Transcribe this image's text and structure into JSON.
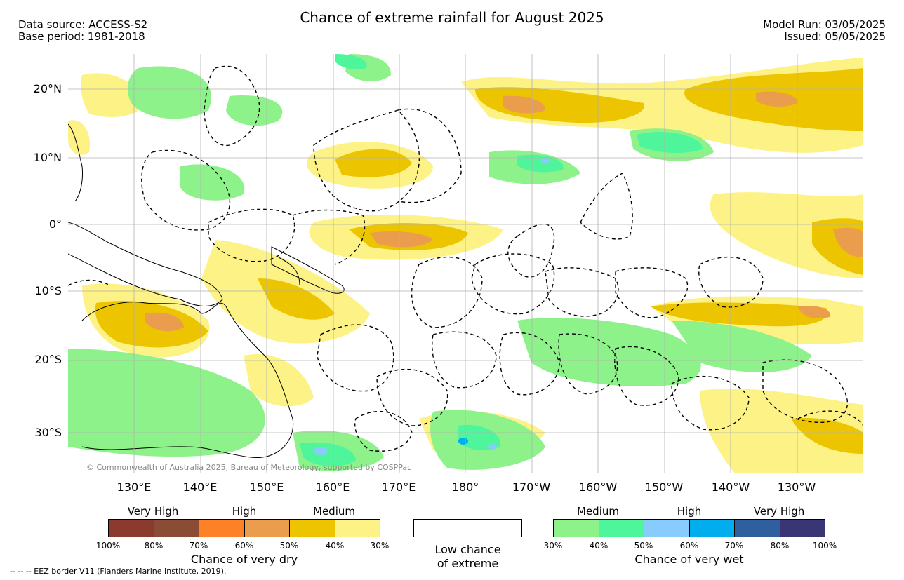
{
  "title": "Chance of extreme rainfall for August 2025",
  "header_left": {
    "source": "Data source: ACCESS-S2",
    "base": "Base period: 1981-2018"
  },
  "header_right": {
    "run": "Model Run: 03/05/2025",
    "issued": "Issued: 05/05/2025"
  },
  "copyright": "© Commonwealth of Australia 2025, Bureau of Meteorology, supported by COSPPac",
  "lat_labels": [
    "20°N",
    "10°N",
    "0°",
    "10°S",
    "20°S",
    "30°S"
  ],
  "lon_labels": [
    "130°E",
    "140°E",
    "150°E",
    "160°E",
    "170°E",
    "180°",
    "170°W",
    "160°W",
    "150°W",
    "140°W",
    "130°W"
  ],
  "legend": {
    "dry": {
      "categories": [
        "Very High",
        "High",
        "Medium"
      ],
      "ticks": [
        "100%",
        "80%",
        "70%",
        "60%",
        "50%",
        "40%",
        "30%"
      ],
      "colors": [
        "#8b3a2e",
        "#8b4c36",
        "#fd8227",
        "#ea9d4d",
        "#ecc500",
        "#fdf285"
      ],
      "caption": "Chance of very dry"
    },
    "neutral": {
      "line1": "Low chance",
      "line2": "of extreme"
    },
    "wet": {
      "categories": [
        "Medium",
        "High",
        "Very High"
      ],
      "ticks": [
        "30%",
        "40%",
        "50%",
        "60%",
        "70%",
        "80%",
        "100%"
      ],
      "colors": [
        "#8ef28a",
        "#4ef59b",
        "#87ccfc",
        "#00aeee",
        "#305f9e",
        "#3a3675"
      ],
      "caption": "Chance of very wet"
    }
  },
  "footnote": "--  --  -- EEZ border V11 (Flanders Marine Institute, 2019)."
}
